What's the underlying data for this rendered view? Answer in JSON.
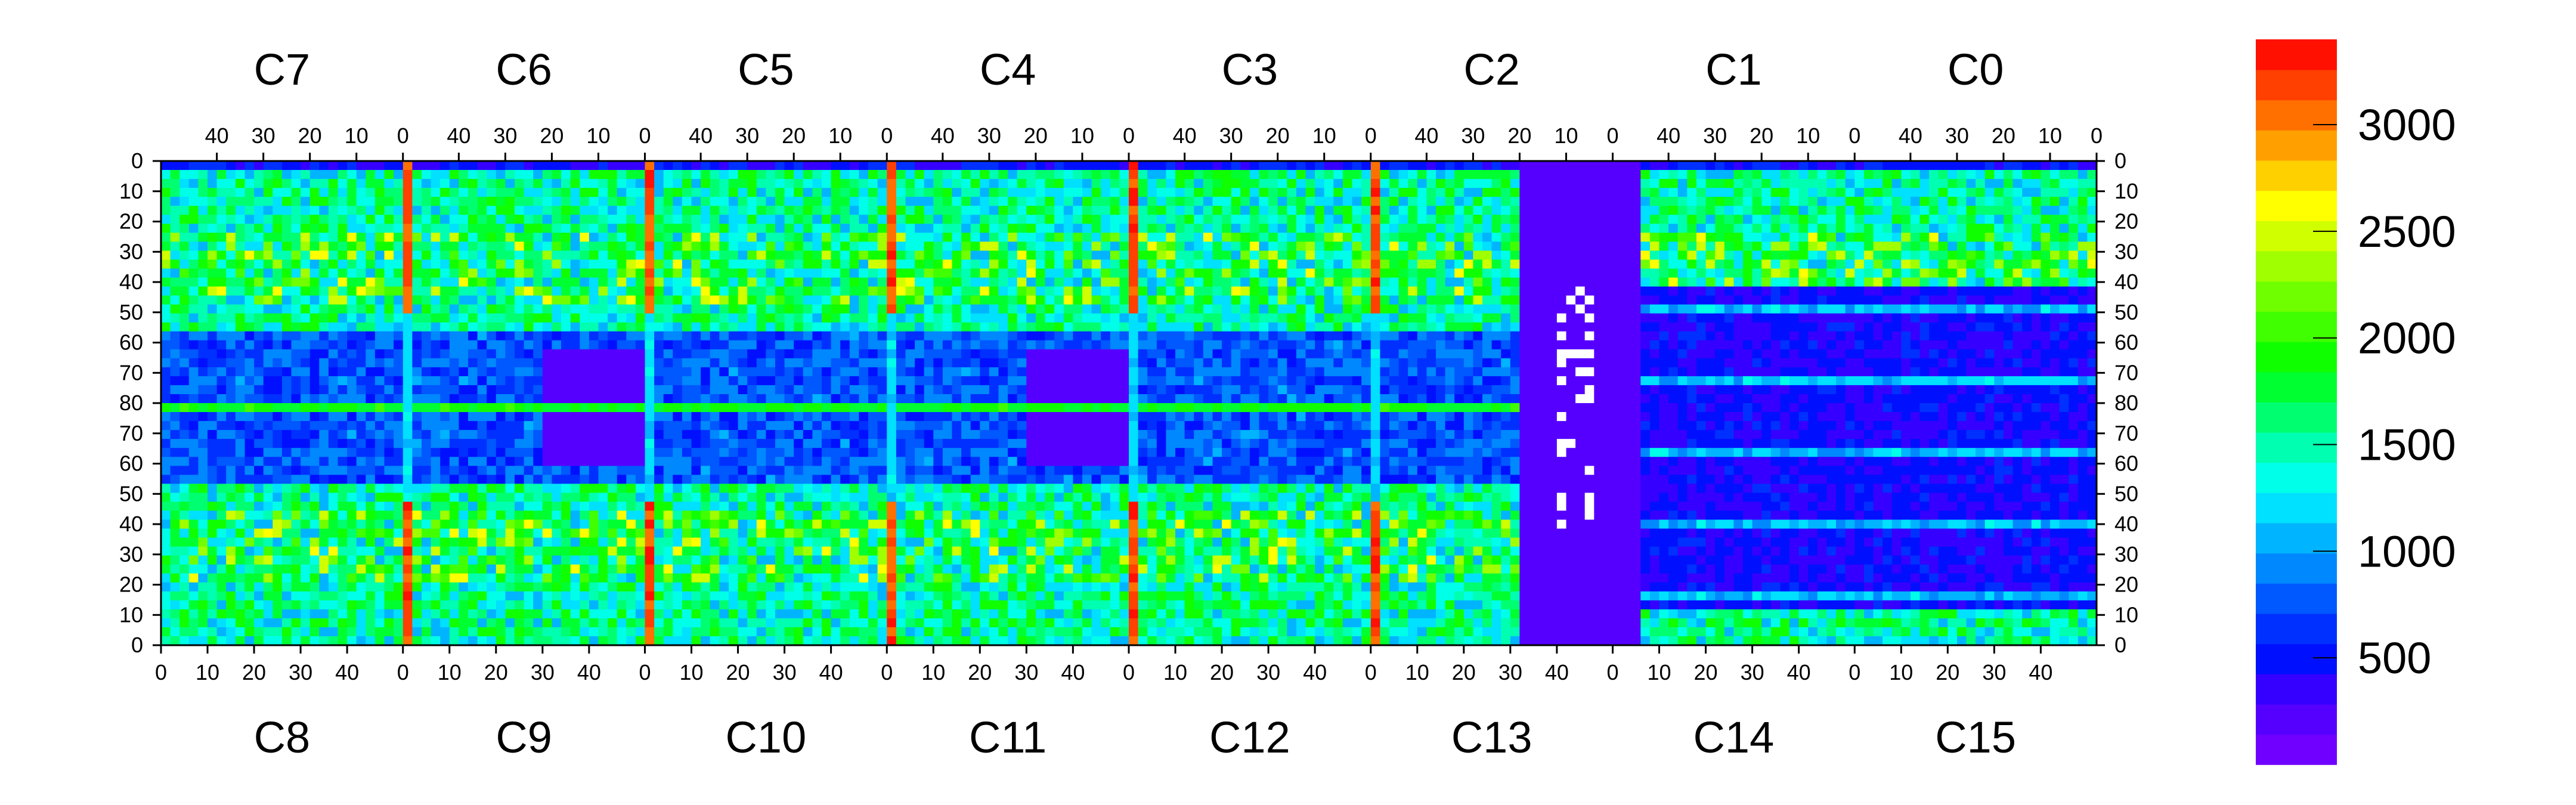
{
  "chart_data": {
    "type": "heatmap",
    "title": "",
    "xlabel": "",
    "ylabel": "",
    "chips_top": [
      "C7",
      "C6",
      "C5",
      "C4",
      "C3",
      "C2",
      "C1",
      "C0"
    ],
    "chips_bottom": [
      "C8",
      "C9",
      "C10",
      "C11",
      "C12",
      "C13",
      "C14",
      "C15"
    ],
    "top_x_ticks": [
      "40",
      "30",
      "20",
      "10",
      "0"
    ],
    "bottom_x_ticks": [
      "0",
      "10",
      "20",
      "30",
      "40"
    ],
    "y_ticks_top_half": [
      "0",
      "10",
      "20",
      "30",
      "40",
      "50",
      "60",
      "70",
      "80"
    ],
    "y_ticks_bottom_half": [
      "70",
      "60",
      "50",
      "40",
      "30",
      "20",
      "10",
      "0"
    ],
    "colorbar": {
      "ticks": [
        "500",
        "1000",
        "1500",
        "2000",
        "2500",
        "3000"
      ],
      "range": [
        0,
        3400
      ],
      "colors": [
        "#7000ff",
        "#5500ff",
        "#3500ff",
        "#0010ff",
        "#0030ff",
        "#0058ff",
        "#0088ff",
        "#00b4ff",
        "#00e0ff",
        "#00ffe8",
        "#00ffb0",
        "#00ff70",
        "#00ff30",
        "#10ff00",
        "#40ff00",
        "#70ff00",
        "#a0ff00",
        "#d0ff00",
        "#ffff00",
        "#ffd000",
        "#ffa000",
        "#ff7000",
        "#ff4000",
        "#ff1000"
      ]
    },
    "grid": false,
    "legend": "colorbar-right",
    "description_values": {
      "background_level": 1500,
      "hot_column_level": 3000,
      "dead_level": 0
    }
  }
}
